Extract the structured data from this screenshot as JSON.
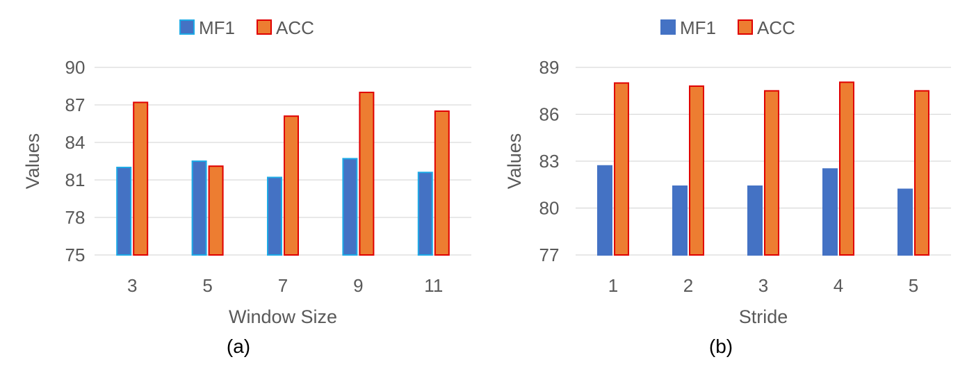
{
  "chart_data": [
    {
      "type": "bar",
      "panel_label": "(a)",
      "title": "",
      "xlabel": "Window Size",
      "ylabel": "Values",
      "categories": [
        "3",
        "5",
        "7",
        "9",
        "11"
      ],
      "series": [
        {
          "name": "MF1",
          "values": [
            82.0,
            82.5,
            81.2,
            82.7,
            81.6
          ]
        },
        {
          "name": "ACC",
          "values": [
            87.2,
            82.1,
            86.1,
            88.0,
            86.5
          ]
        }
      ],
      "ylim": [
        75,
        90
      ],
      "yticks": [
        "75",
        "78",
        "81",
        "84",
        "87",
        "90"
      ],
      "grid": true,
      "legend_position": "top"
    },
    {
      "type": "bar",
      "panel_label": "(b)",
      "title": "",
      "xlabel": "Stride",
      "ylabel": "Values",
      "categories": [
        "1",
        "2",
        "3",
        "4",
        "5"
      ],
      "series": [
        {
          "name": "MF1",
          "values": [
            82.7,
            81.4,
            81.4,
            82.5,
            81.2
          ]
        },
        {
          "name": "ACC",
          "values": [
            88.0,
            87.8,
            87.5,
            88.05,
            87.5
          ]
        }
      ],
      "ylim": [
        77,
        89
      ],
      "yticks": [
        "77",
        "80",
        "83",
        "86",
        "89"
      ],
      "grid": true,
      "legend_position": "top"
    }
  ],
  "colors": {
    "mf1_fill": "#4472C4",
    "acc_fill": "#ED7D31",
    "acc_stroke": "#E00000",
    "mf1_stroke_a": "#1EAAE6",
    "mf1_stroke_b": "#4472C4",
    "grid": "#D9D9D9",
    "text": "#595959"
  }
}
